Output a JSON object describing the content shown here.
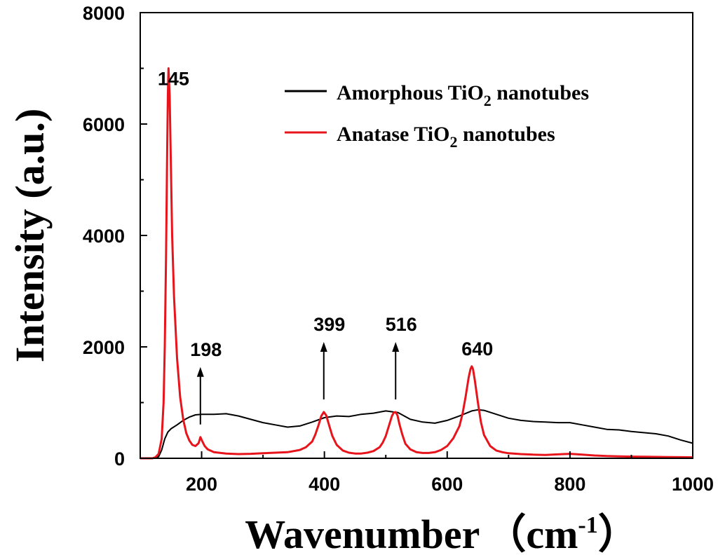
{
  "chart_data": {
    "type": "line",
    "xlabel": "Wavenumber",
    "xlabel_unit_open": "（cm",
    "xlabel_unit_sup": "-1",
    "xlabel_unit_close": "）",
    "ylabel": "Intensity (a.u.)",
    "xlim": [
      100,
      1000
    ],
    "ylim": [
      0,
      8000
    ],
    "x_ticks": [
      200,
      400,
      600,
      800,
      1000
    ],
    "x_tick_labels": [
      "200",
      "400",
      "600",
      "800",
      "1000"
    ],
    "y_ticks": [
      0,
      2000,
      4000,
      6000,
      8000
    ],
    "y_tick_labels": [
      "0",
      "2000",
      "4000",
      "6000",
      "8000"
    ],
    "grid": false,
    "legend_position": "top-right",
    "series": [
      {
        "name_prefix": "Amorphous TiO",
        "name_sub": "2",
        "name_suffix": " nanotubes",
        "color": "#000000",
        "x": [
          100,
          120,
          130,
          135,
          140,
          145,
          150,
          160,
          170,
          180,
          190,
          200,
          220,
          240,
          260,
          280,
          300,
          320,
          340,
          360,
          380,
          400,
          420,
          440,
          460,
          480,
          500,
          520,
          540,
          560,
          580,
          600,
          620,
          640,
          650,
          660,
          680,
          700,
          720,
          740,
          760,
          780,
          800,
          820,
          840,
          860,
          880,
          900,
          920,
          940,
          960,
          980,
          1000
        ],
        "y": [
          0,
          0,
          30,
          150,
          350,
          470,
          530,
          600,
          680,
          740,
          780,
          790,
          790,
          800,
          760,
          700,
          640,
          600,
          560,
          580,
          650,
          730,
          760,
          750,
          790,
          810,
          850,
          820,
          700,
          650,
          630,
          680,
          760,
          850,
          870,
          860,
          790,
          720,
          680,
          660,
          650,
          640,
          640,
          600,
          560,
          520,
          510,
          480,
          460,
          440,
          400,
          330,
          270
        ]
      },
      {
        "name_prefix": "Anatase TiO",
        "name_sub": "2",
        "name_suffix": " nanotubes",
        "color": "#e8141b",
        "x": [
          100,
          120,
          125,
          130,
          135,
          138,
          140,
          142,
          144,
          145,
          146,
          148,
          150,
          152,
          155,
          160,
          165,
          170,
          175,
          180,
          185,
          190,
          195,
          198,
          200,
          205,
          210,
          220,
          240,
          260,
          280,
          300,
          320,
          340,
          360,
          370,
          380,
          385,
          390,
          395,
          399,
          403,
          408,
          413,
          420,
          430,
          440,
          450,
          460,
          470,
          480,
          490,
          495,
          500,
          505,
          510,
          513,
          516,
          519,
          522,
          527,
          532,
          540,
          550,
          560,
          570,
          580,
          590,
          600,
          610,
          620,
          625,
          630,
          635,
          638,
          640,
          642,
          645,
          650,
          655,
          660,
          670,
          680,
          690,
          700,
          720,
          740,
          760,
          780,
          800,
          820,
          840,
          860,
          880,
          900,
          920,
          940,
          960,
          980,
          1000
        ],
        "y": [
          0,
          0,
          20,
          80,
          350,
          1000,
          2000,
          3600,
          5600,
          6500,
          7000,
          6500,
          5200,
          4000,
          2900,
          1800,
          1100,
          700,
          450,
          320,
          240,
          220,
          270,
          380,
          330,
          220,
          160,
          110,
          85,
          75,
          80,
          90,
          100,
          110,
          150,
          200,
          300,
          420,
          580,
          760,
          830,
          770,
          580,
          400,
          240,
          140,
          100,
          85,
          85,
          100,
          130,
          200,
          280,
          400,
          580,
          760,
          820,
          830,
          770,
          620,
          420,
          260,
          160,
          110,
          95,
          95,
          110,
          150,
          220,
          360,
          580,
          800,
          1100,
          1450,
          1600,
          1650,
          1600,
          1400,
          1000,
          650,
          420,
          220,
          140,
          110,
          90,
          75,
          65,
          60,
          70,
          80,
          65,
          50,
          40,
          35,
          30,
          28,
          25,
          22,
          20,
          18
        ]
      }
    ],
    "annotations": [
      {
        "label": "145",
        "x": 145,
        "arrow": false
      },
      {
        "label": "198",
        "x": 198,
        "arrow": true
      },
      {
        "label": "399",
        "x": 399,
        "arrow": true
      },
      {
        "label": "516",
        "x": 516,
        "arrow": true
      },
      {
        "label": "640",
        "x": 640,
        "arrow": false
      }
    ]
  }
}
